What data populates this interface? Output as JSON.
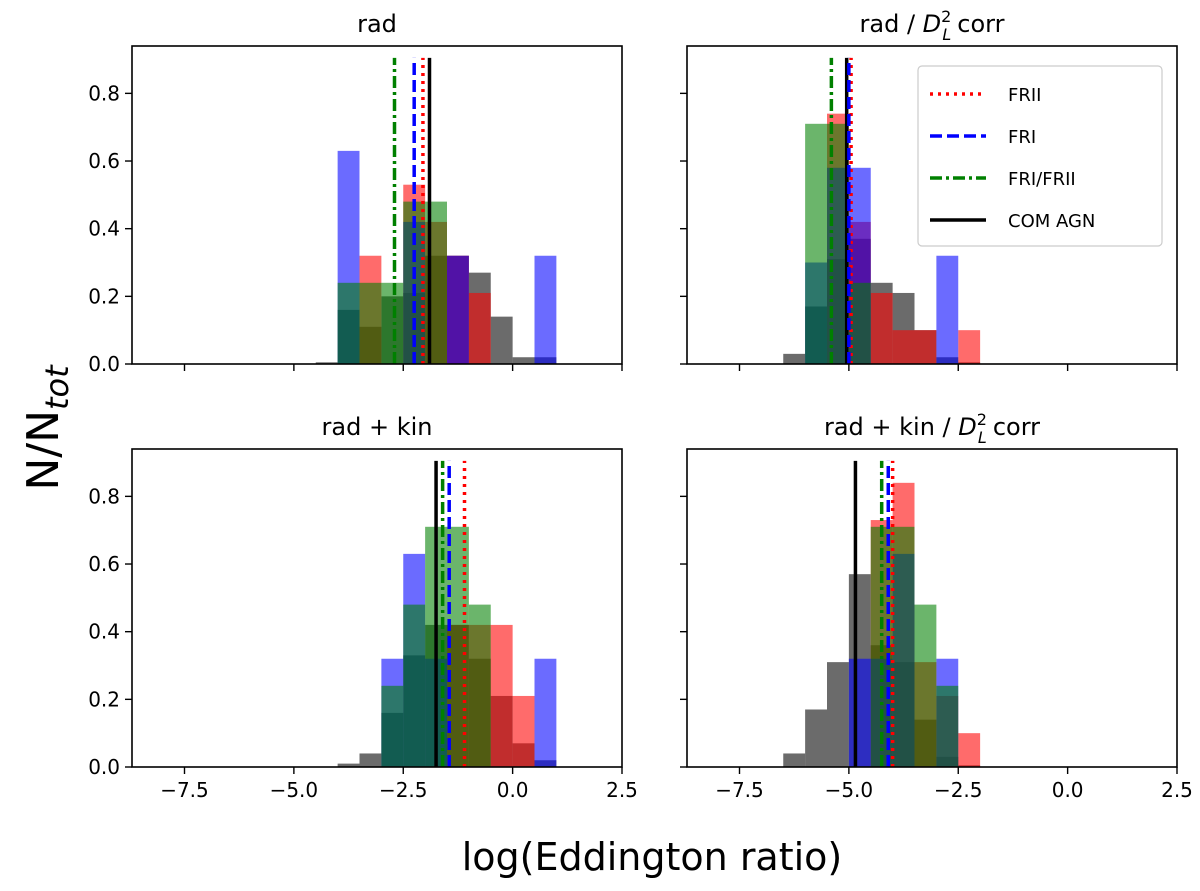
{
  "chart_data": {
    "type": "bar",
    "figure": {
      "xlabel": "log(Eddington ratio)",
      "ylabel_main": "N/N",
      "ylabel_sub": "tot",
      "xlim": [
        -8.7,
        2.5
      ],
      "ylim": [
        0,
        0.94
      ],
      "xticks": [
        -7.5,
        -5.0,
        -2.5,
        0.0,
        2.5
      ],
      "xtick_labels": [
        "−7.5",
        "−5.0",
        "−2.5",
        "0.0",
        "2.5"
      ],
      "yticks": [
        0.0,
        0.2,
        0.4,
        0.6,
        0.8
      ],
      "ytick_labels": [
        "0.0",
        "0.2",
        "0.4",
        "0.6",
        "0.8"
      ],
      "bin_width": 0.5
    },
    "legend": {
      "position": "top-right (panel 2)",
      "entries": [
        {
          "label": "FRII",
          "color": "#ff0000",
          "style": "dotted"
        },
        {
          "label": "FRI",
          "color": "#0000ff",
          "style": "dashed"
        },
        {
          "label": "FRI/FRII",
          "color": "#008000",
          "style": "dashdot"
        },
        {
          "label": "COM AGN",
          "color": "#000000",
          "style": "solid"
        }
      ]
    },
    "colors": {
      "FRII": "#ff0000",
      "FRI": "#0000ff",
      "FRI/FRII": "#008000",
      "COM AGN": "#000000"
    },
    "panels": [
      {
        "title": "rad",
        "title_sup": "",
        "title_sub": "",
        "title_suffix": "",
        "vlines": {
          "FRII": -2.05,
          "FRI": -2.25,
          "FRI/FRII": -2.7,
          "COM AGN": -1.9
        },
        "series": [
          {
            "name": "COM AGN",
            "bins": [
              [
                -4.5,
                0.005
              ],
              [
                -4.0,
                0.16
              ],
              [
                -3.5,
                0.11
              ],
              [
                -3.0,
                0.2
              ],
              [
                -2.5,
                0.21
              ],
              [
                -2.0,
                0.32
              ],
              [
                -1.5,
                0.32
              ],
              [
                -1.0,
                0.27
              ],
              [
                -0.5,
                0.14
              ],
              [
                0.0,
                0.02
              ],
              [
                0.5,
                0.02
              ]
            ]
          },
          {
            "name": "FRII",
            "bins": [
              [
                -3.5,
                0.32
              ],
              [
                -2.5,
                0.53
              ],
              [
                -2.0,
                0.42
              ],
              [
                -1.5,
                0.32
              ],
              [
                -1.0,
                0.21
              ]
            ]
          },
          {
            "name": "FRI",
            "bins": [
              [
                -4.0,
                0.63
              ],
              [
                -2.5,
                0.42
              ],
              [
                -1.5,
                0.32
              ],
              [
                0.5,
                0.32
              ]
            ]
          },
          {
            "name": "FRI/FRII",
            "bins": [
              [
                -4.0,
                0.24
              ],
              [
                -3.5,
                0.24
              ],
              [
                -3.0,
                0.24
              ],
              [
                -2.5,
                0.48
              ],
              [
                -2.0,
                0.48
              ]
            ]
          }
        ]
      },
      {
        "title": "rad / ",
        "title_sup": "2",
        "title_sub": "L",
        "title_suffix": "corr",
        "vlines": {
          "FRII": -4.95,
          "FRI": -5.0,
          "FRI/FRII": -5.4,
          "COM AGN": -5.05
        },
        "series": [
          {
            "name": "COM AGN",
            "bins": [
              [
                -6.5,
                0.03
              ],
              [
                -6.0,
                0.17
              ],
              [
                -5.5,
                0.31
              ],
              [
                -5.0,
                0.37
              ],
              [
                -4.5,
                0.24
              ],
              [
                -4.0,
                0.21
              ],
              [
                -3.5,
                0.1
              ],
              [
                -3.0,
                0.02
              ],
              [
                -2.5,
                0.005
              ]
            ]
          },
          {
            "name": "FRII",
            "bins": [
              [
                -5.5,
                0.74
              ],
              [
                -5.0,
                0.42
              ],
              [
                -4.5,
                0.21
              ],
              [
                -4.0,
                0.1
              ],
              [
                -3.5,
                0.1
              ],
              [
                -2.5,
                0.1
              ]
            ]
          },
          {
            "name": "FRI",
            "bins": [
              [
                -6.0,
                0.3
              ],
              [
                -5.5,
                0.58
              ],
              [
                -5.0,
                0.58
              ],
              [
                -3.0,
                0.32
              ]
            ]
          },
          {
            "name": "FRI/FRII",
            "bins": [
              [
                -6.0,
                0.71
              ],
              [
                -5.5,
                0.71
              ],
              [
                -5.0,
                0.24
              ]
            ]
          }
        ]
      },
      {
        "title": "rad + kin",
        "title_sup": "",
        "title_sub": "",
        "title_suffix": "",
        "vlines": {
          "FRII": -1.1,
          "FRI": -1.45,
          "FRI/FRII": -1.6,
          "COM AGN": -1.75
        },
        "series": [
          {
            "name": "COM AGN",
            "bins": [
              [
                -4.0,
                0.01
              ],
              [
                -3.5,
                0.04
              ],
              [
                -3.0,
                0.16
              ],
              [
                -2.5,
                0.33
              ],
              [
                -2.0,
                0.42
              ],
              [
                -1.5,
                0.42
              ],
              [
                -1.0,
                0.32
              ],
              [
                -0.5,
                0.21
              ],
              [
                0.0,
                0.07
              ],
              [
                0.5,
                0.02
              ]
            ]
          },
          {
            "name": "FRII",
            "bins": [
              [
                -1.5,
                0.42
              ],
              [
                -1.0,
                0.42
              ],
              [
                -0.5,
                0.42
              ],
              [
                0.0,
                0.21
              ]
            ]
          },
          {
            "name": "FRI",
            "bins": [
              [
                -3.0,
                0.32
              ],
              [
                -2.5,
                0.63
              ],
              [
                -2.0,
                0.32
              ],
              [
                0.5,
                0.32
              ]
            ]
          },
          {
            "name": "FRI/FRII",
            "bins": [
              [
                -3.0,
                0.24
              ],
              [
                -2.5,
                0.48
              ],
              [
                -2.0,
                0.71
              ],
              [
                -1.5,
                0.71
              ],
              [
                -1.0,
                0.48
              ]
            ]
          }
        ]
      },
      {
        "title": "rad + kin / ",
        "title_sup": "2",
        "title_sub": "L",
        "title_suffix": "corr",
        "vlines": {
          "FRII": -4.0,
          "FRI": -4.1,
          "FRI/FRII": -4.25,
          "COM AGN": -4.85
        },
        "series": [
          {
            "name": "COM AGN",
            "bins": [
              [
                -6.5,
                0.04
              ],
              [
                -6.0,
                0.17
              ],
              [
                -5.5,
                0.31
              ],
              [
                -5.0,
                0.57
              ],
              [
                -4.5,
                0.36
              ],
              [
                -4.0,
                0.31
              ],
              [
                -3.5,
                0.14
              ],
              [
                -3.0,
                0.03
              ],
              [
                -2.5,
                0.005
              ]
            ]
          },
          {
            "name": "FRII",
            "bins": [
              [
                -4.5,
                0.73
              ],
              [
                -4.0,
                0.84
              ],
              [
                -3.5,
                0.31
              ],
              [
                -3.0,
                0.21
              ],
              [
                -2.5,
                0.1
              ]
            ]
          },
          {
            "name": "FRI",
            "bins": [
              [
                -5.0,
                0.32
              ],
              [
                -4.5,
                0.32
              ],
              [
                -4.0,
                0.63
              ],
              [
                -3.0,
                0.32
              ]
            ]
          },
          {
            "name": "FRI/FRII",
            "bins": [
              [
                -4.5,
                0.71
              ],
              [
                -4.0,
                0.71
              ],
              [
                -3.5,
                0.48
              ],
              [
                -3.0,
                0.24
              ]
            ]
          }
        ]
      }
    ]
  }
}
